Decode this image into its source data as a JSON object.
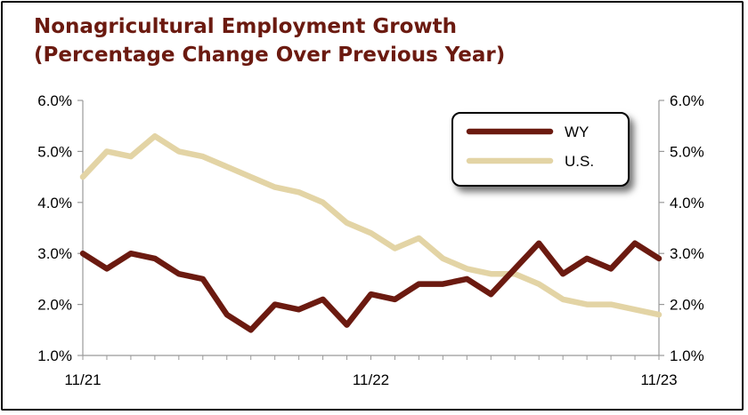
{
  "chart_data": {
    "type": "line",
    "title_line1": "Nonagricultural Employment Growth",
    "title_line2": "(Percentage Change Over Previous Year)",
    "xlabel": "",
    "ylabel": "",
    "ylim": [
      1.0,
      6.0
    ],
    "y_ticks": [
      "1.0%",
      "2.0%",
      "3.0%",
      "4.0%",
      "5.0%",
      "6.0%"
    ],
    "x_tick_labels": [
      {
        "index": 0,
        "label": "11/21"
      },
      {
        "index": 12,
        "label": "11/22"
      },
      {
        "index": 24,
        "label": "11/23"
      }
    ],
    "grid": false,
    "legend_position": "top-right",
    "series": [
      {
        "name": "WY",
        "color": "#6b1a10",
        "values": [
          3.0,
          2.7,
          3.0,
          2.9,
          2.6,
          2.5,
          1.8,
          1.5,
          2.0,
          1.9,
          2.1,
          1.6,
          2.2,
          2.1,
          2.4,
          2.4,
          2.5,
          2.2,
          2.7,
          3.2,
          2.6,
          2.9,
          2.7,
          3.2,
          2.9
        ]
      },
      {
        "name": "U.S.",
        "color": "#e3d4a5",
        "values": [
          4.5,
          5.0,
          4.9,
          5.3,
          5.0,
          4.9,
          4.7,
          4.5,
          4.3,
          4.2,
          4.0,
          3.6,
          3.4,
          3.1,
          3.3,
          2.9,
          2.7,
          2.6,
          2.6,
          2.4,
          2.1,
          2.0,
          2.0,
          1.9,
          1.8
        ]
      }
    ]
  }
}
